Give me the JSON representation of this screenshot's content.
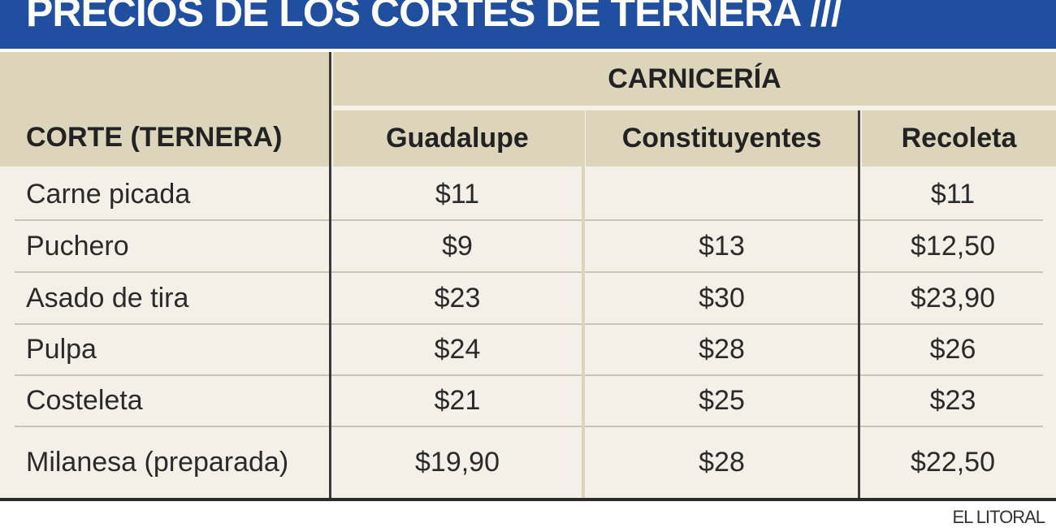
{
  "header": {
    "title": "PRECIOS DE LOS CORTES DE TERNERA ///"
  },
  "table": {
    "group_header": "CARNICERÍA",
    "columns": [
      "CORTE (TERNERA)",
      "Guadalupe",
      "Constituyentes",
      "Recoleta"
    ],
    "rows": [
      [
        "Carne picada",
        "$11",
        null,
        "$11"
      ],
      [
        "Puchero",
        "$9",
        "$13",
        "$12,50"
      ],
      [
        "Asado de tira",
        "$23",
        "$30",
        "$23,90"
      ],
      [
        "Pulpa",
        "$24",
        "$28",
        "$26"
      ],
      [
        "Costeleta",
        "$21",
        "$25",
        "$23"
      ],
      [
        "Milanesa (preparada)",
        "$19,90",
        "$28",
        "$22,50"
      ]
    ]
  },
  "footer": {
    "source": "EL LITORAL"
  }
}
